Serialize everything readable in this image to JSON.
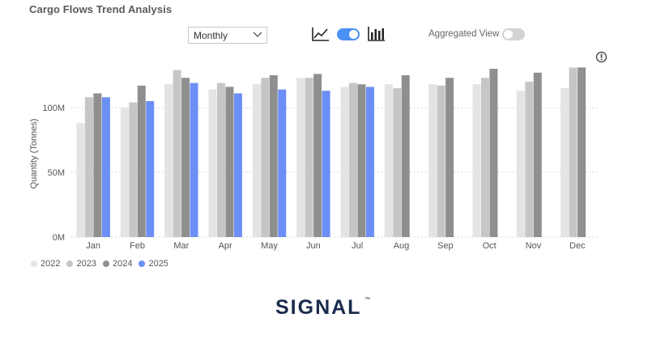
{
  "title": "Cargo Flows Trend Analysis",
  "period_select": {
    "value": "Monthly"
  },
  "view_toggle": {
    "state": "on",
    "icons": [
      "line-chart-icon",
      "bar-chart-icon"
    ]
  },
  "aggregated_view": {
    "label": "Aggregated View",
    "state": "off"
  },
  "brand": {
    "logo_text": "SIGNAL",
    "trademark": "™",
    "color": "#1a2b4c"
  },
  "colors": {
    "accent": "#4a90f5",
    "toggle_off": "#d3d3d3"
  },
  "chart_data": {
    "type": "bar",
    "categories": [
      "Jan",
      "Feb",
      "Mar",
      "Apr",
      "May",
      "Jun",
      "Jul",
      "Aug",
      "Sep",
      "Oct",
      "Nov",
      "Dec"
    ],
    "series": [
      {
        "name": "2022",
        "color": "#e4e4e4",
        "values": [
          88,
          100,
          118,
          114,
          118,
          123,
          116,
          118,
          118,
          118,
          113,
          115
        ]
      },
      {
        "name": "2023",
        "color": "#c6c6c6",
        "values": [
          108,
          104,
          129,
          119,
          123,
          123,
          119,
          115,
          117,
          123,
          120,
          131
        ]
      },
      {
        "name": "2024",
        "color": "#8f8f8f",
        "values": [
          111,
          117,
          123,
          116,
          125,
          126,
          118,
          125,
          123,
          130,
          127,
          131
        ]
      },
      {
        "name": "2025",
        "color": "#6b8ff5",
        "values": [
          108,
          105,
          119,
          111,
          114,
          113,
          116,
          null,
          null,
          null,
          null,
          null
        ]
      }
    ],
    "ylabel": "Quantity (Tonnes)",
    "ylim": [
      0,
      150
    ],
    "yticks": [
      {
        "value": 0,
        "label": "0M"
      },
      {
        "value": 50,
        "label": "50M"
      },
      {
        "value": 100,
        "label": "100M"
      }
    ],
    "grid": true,
    "legend_position": "bottom-left"
  }
}
